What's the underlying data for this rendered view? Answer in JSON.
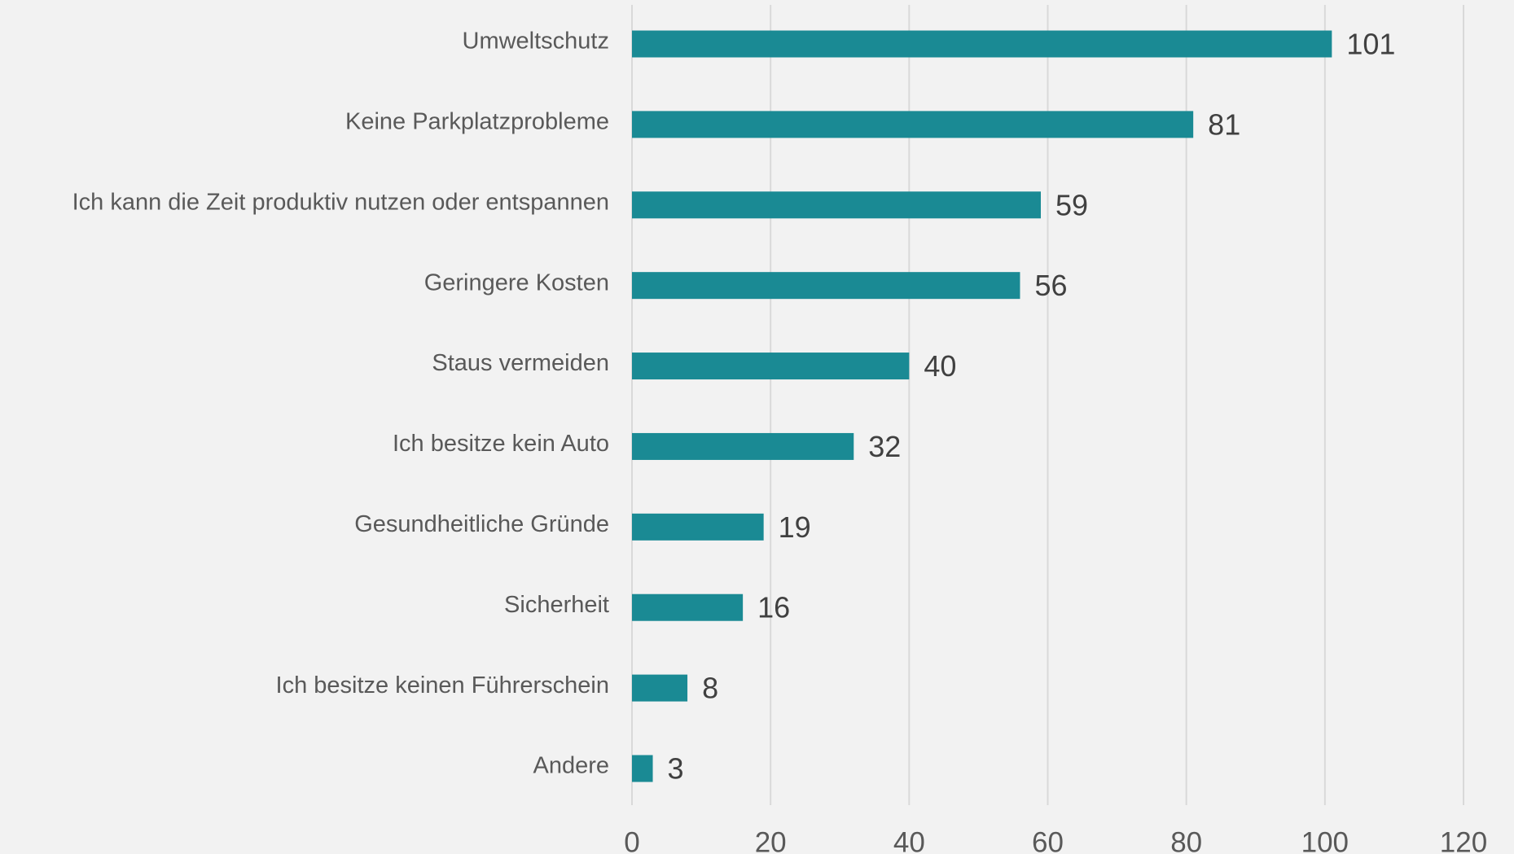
{
  "chart_data": {
    "type": "barh",
    "categories": [
      "Umweltschutz",
      "Keine Parkplatzprobleme",
      "Ich kann die Zeit produktiv nutzen oder entspannen",
      "Geringere Kosten",
      "Staus vermeiden",
      "Ich besitze kein Auto",
      "Gesundheitliche Gründe",
      "Sicherheit",
      "Ich besitze keinen Führerschein",
      "Andere"
    ],
    "values": [
      101,
      81,
      59,
      56,
      40,
      32,
      19,
      16,
      8,
      3
    ],
    "color": "#1a8a94",
    "xlim": [
      0,
      120
    ],
    "xticks": [
      0,
      20,
      40,
      60,
      80,
      100,
      120
    ],
    "grid": true
  }
}
